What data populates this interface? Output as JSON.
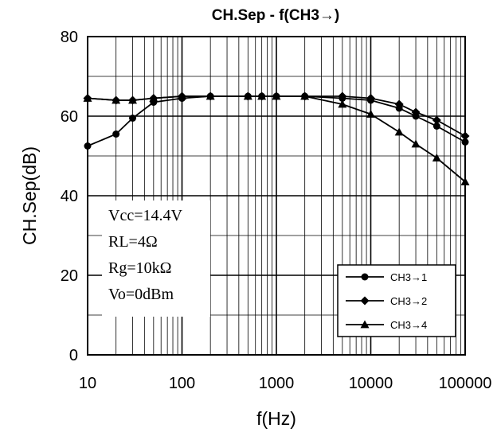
{
  "chart_data": {
    "type": "line",
    "title": "CH.Sep - f(CH3→)",
    "xlabel": "f(Hz)",
    "ylabel": "CH.Sep(dB)",
    "x_scale": "log",
    "xlim": [
      10,
      100000
    ],
    "ylim": [
      0,
      80
    ],
    "x_ticks": [
      10,
      100,
      1000,
      10000,
      100000
    ],
    "x_tick_labels": [
      "10",
      "100",
      "1000",
      "10000",
      "100000"
    ],
    "y_ticks": [
      0,
      20,
      40,
      60,
      80
    ],
    "y_tick_labels": [
      "0",
      "20",
      "40",
      "60",
      "80"
    ],
    "grid": true,
    "legend_position": "bottom-right",
    "conditions": [
      "Vcc=14.4V",
      "RL=4Ω",
      "Rg=10kΩ",
      "Vo=0dBm"
    ],
    "x": [
      10,
      20,
      30,
      50,
      100,
      200,
      500,
      700,
      1000,
      2000,
      5000,
      10000,
      20000,
      30000,
      50000,
      100000
    ],
    "series": [
      {
        "name": "CH3→1",
        "marker": "circle",
        "values": [
          52.5,
          55.5,
          59.5,
          63.5,
          64.5,
          65,
          65,
          65,
          65,
          65,
          64.5,
          64,
          62,
          60,
          57.5,
          53.5
        ]
      },
      {
        "name": "CH3→2",
        "marker": "diamond",
        "values": [
          64.5,
          64,
          64,
          64.5,
          65,
          65,
          65,
          65,
          65,
          65,
          65,
          64.5,
          63,
          61,
          59,
          55
        ]
      },
      {
        "name": "CH3→4",
        "marker": "triangle",
        "values": [
          64.5,
          64,
          64,
          64.5,
          65,
          65,
          65,
          65,
          65,
          65,
          63,
          60.5,
          56,
          53,
          49.5,
          43.5
        ]
      }
    ]
  }
}
